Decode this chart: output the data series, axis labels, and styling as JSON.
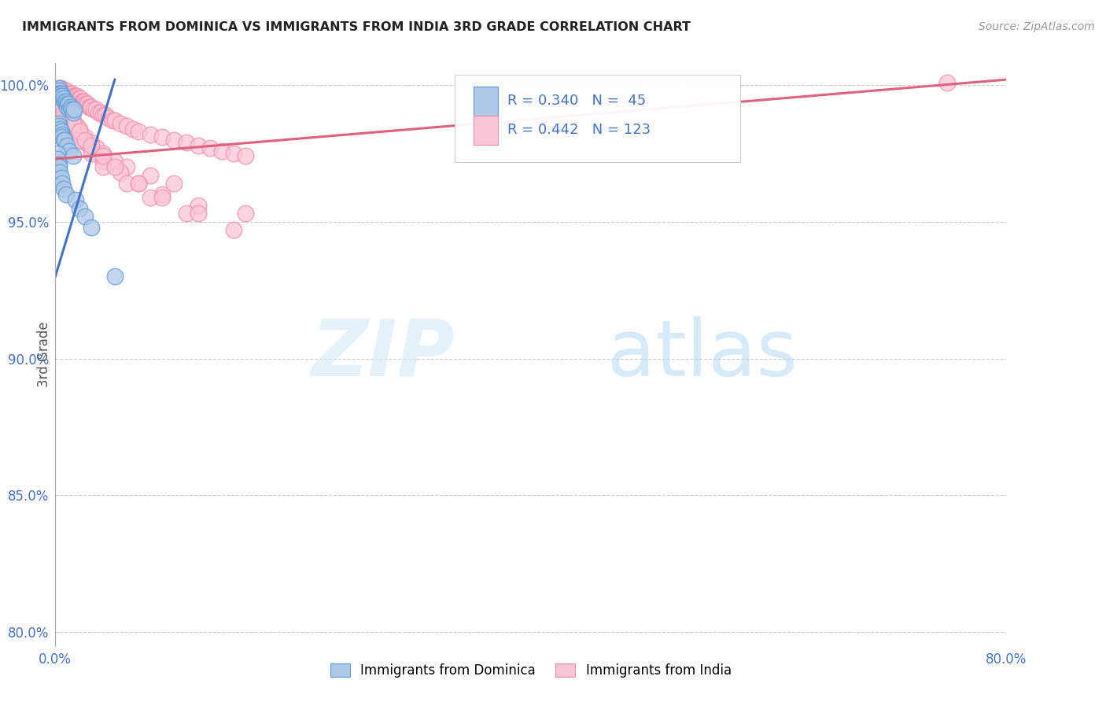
{
  "title": "IMMIGRANTS FROM DOMINICA VS IMMIGRANTS FROM INDIA 3RD GRADE CORRELATION CHART",
  "source_text": "Source: ZipAtlas.com",
  "ylabel": "3rd Grade",
  "xlim": [
    0.0,
    0.8
  ],
  "ylim": [
    0.795,
    1.008
  ],
  "xtick_positions": [
    0.0,
    0.1,
    0.2,
    0.3,
    0.4,
    0.5,
    0.6,
    0.7,
    0.8
  ],
  "xticklabels": [
    "0.0%",
    "",
    "",
    "",
    "",
    "",
    "",
    "",
    "80.0%"
  ],
  "ytick_positions": [
    0.8,
    0.85,
    0.9,
    0.95,
    1.0
  ],
  "yticklabels": [
    "80.0%",
    "85.0%",
    "90.0%",
    "95.0%",
    "100.0%"
  ],
  "dominica_color": "#aec8e8",
  "dominica_edge": "#5b9bd5",
  "india_color": "#f9c6d4",
  "india_edge": "#f48baa",
  "trendline_dominica_color": "#4472c4",
  "trendline_india_color": "#e06080",
  "legend_r_dominica": "R = 0.340",
  "legend_n_dominica": "N =  45",
  "legend_r_india": "R = 0.442",
  "legend_n_india": "N = 123",
  "watermark_zip": "ZIP",
  "watermark_atlas": "atlas",
  "background_color": "#ffffff",
  "grid_color": "#cccccc",
  "dominica_x": [
    0.003,
    0.003,
    0.003,
    0.004,
    0.004,
    0.005,
    0.005,
    0.006,
    0.006,
    0.007,
    0.008,
    0.009,
    0.01,
    0.01,
    0.011,
    0.012,
    0.013,
    0.014,
    0.015,
    0.016,
    0.003,
    0.003,
    0.004,
    0.005,
    0.006,
    0.006,
    0.007,
    0.008,
    0.01,
    0.012,
    0.015,
    0.002,
    0.002,
    0.003,
    0.003,
    0.004,
    0.005,
    0.006,
    0.007,
    0.009,
    0.017,
    0.02,
    0.025,
    0.03,
    0.05
  ],
  "dominica_y": [
    0.999,
    0.998,
    0.997,
    0.997,
    0.996,
    0.997,
    0.996,
    0.995,
    0.996,
    0.995,
    0.994,
    0.994,
    0.993,
    0.992,
    0.993,
    0.991,
    0.992,
    0.991,
    0.99,
    0.991,
    0.986,
    0.985,
    0.984,
    0.983,
    0.982,
    0.981,
    0.98,
    0.98,
    0.978,
    0.976,
    0.974,
    0.975,
    0.973,
    0.971,
    0.97,
    0.968,
    0.966,
    0.964,
    0.962,
    0.96,
    0.958,
    0.955,
    0.952,
    0.948,
    0.93
  ],
  "india_x": [
    0.003,
    0.004,
    0.005,
    0.006,
    0.007,
    0.008,
    0.009,
    0.01,
    0.011,
    0.012,
    0.013,
    0.014,
    0.015,
    0.016,
    0.017,
    0.018,
    0.019,
    0.02,
    0.021,
    0.022,
    0.023,
    0.024,
    0.025,
    0.026,
    0.027,
    0.028,
    0.029,
    0.03,
    0.032,
    0.034,
    0.036,
    0.038,
    0.04,
    0.042,
    0.045,
    0.048,
    0.05,
    0.055,
    0.06,
    0.065,
    0.07,
    0.08,
    0.09,
    0.1,
    0.11,
    0.12,
    0.13,
    0.14,
    0.15,
    0.16,
    0.003,
    0.004,
    0.005,
    0.006,
    0.007,
    0.008,
    0.009,
    0.01,
    0.012,
    0.015,
    0.018,
    0.02,
    0.025,
    0.03,
    0.035,
    0.04,
    0.05,
    0.06,
    0.08,
    0.1,
    0.003,
    0.004,
    0.005,
    0.007,
    0.009,
    0.012,
    0.015,
    0.02,
    0.025,
    0.03,
    0.04,
    0.055,
    0.07,
    0.09,
    0.12,
    0.16,
    0.003,
    0.005,
    0.007,
    0.01,
    0.015,
    0.02,
    0.03,
    0.04,
    0.06,
    0.08,
    0.11,
    0.15,
    0.003,
    0.006,
    0.004,
    0.004,
    0.005,
    0.005,
    0.006,
    0.007,
    0.008,
    0.009,
    0.01,
    0.012,
    0.015,
    0.02,
    0.025,
    0.03,
    0.04,
    0.05,
    0.07,
    0.09,
    0.12,
    0.003,
    0.005,
    0.007,
    0.75
  ],
  "india_y": [
    0.999,
    0.999,
    0.999,
    0.998,
    0.998,
    0.998,
    0.998,
    0.997,
    0.997,
    0.997,
    0.997,
    0.997,
    0.996,
    0.996,
    0.996,
    0.996,
    0.995,
    0.995,
    0.995,
    0.994,
    0.994,
    0.994,
    0.993,
    0.993,
    0.993,
    0.992,
    0.992,
    0.992,
    0.991,
    0.991,
    0.99,
    0.99,
    0.989,
    0.989,
    0.988,
    0.987,
    0.987,
    0.986,
    0.985,
    0.984,
    0.983,
    0.982,
    0.981,
    0.98,
    0.979,
    0.978,
    0.977,
    0.976,
    0.975,
    0.974,
    0.998,
    0.997,
    0.996,
    0.995,
    0.994,
    0.993,
    0.992,
    0.991,
    0.989,
    0.987,
    0.985,
    0.984,
    0.981,
    0.979,
    0.977,
    0.975,
    0.972,
    0.97,
    0.967,
    0.964,
    0.997,
    0.996,
    0.994,
    0.992,
    0.99,
    0.987,
    0.985,
    0.982,
    0.979,
    0.976,
    0.972,
    0.968,
    0.964,
    0.96,
    0.956,
    0.953,
    0.996,
    0.993,
    0.99,
    0.987,
    0.983,
    0.98,
    0.975,
    0.97,
    0.964,
    0.959,
    0.953,
    0.947,
    0.995,
    0.992,
    0.998,
    0.997,
    0.996,
    0.995,
    0.994,
    0.993,
    0.992,
    0.991,
    0.99,
    0.988,
    0.986,
    0.983,
    0.98,
    0.978,
    0.974,
    0.97,
    0.964,
    0.959,
    0.953,
    0.996,
    0.993,
    0.99,
    1.001
  ]
}
